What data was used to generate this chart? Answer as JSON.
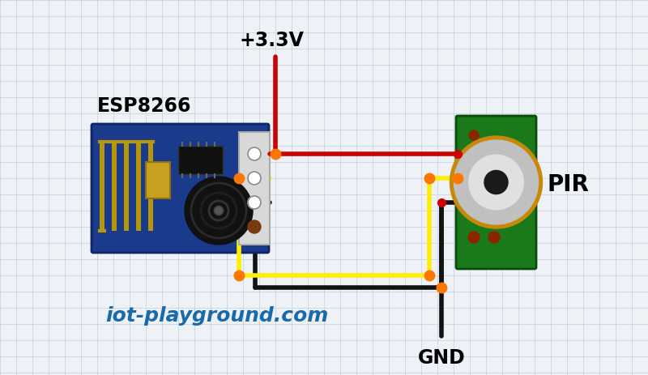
{
  "bg_color": "#eef2f7",
  "grid_color": "#c5d0dc",
  "label_esp": "ESP8266",
  "label_pir": "PIR",
  "label_vcc": "+3.3V",
  "label_gnd": "GND",
  "label_credit": "iot-playground.com",
  "wire_red": "#cc0000",
  "wire_yellow": "#ffee00",
  "wire_black": "#111111",
  "junction": "#ff7700",
  "pin_red": "#cc0000",
  "esp_blue": "#1a3a8c",
  "esp_blue2": "#0d2566",
  "conn_gray": "#cccccc",
  "ant_gold": "#b8960c",
  "chip_dark": "#111111",
  "pir_green": "#1a7a1a",
  "pir_green2": "#0a4a0a",
  "dome_outer": "#c8890a",
  "dome_mid": "#c0c0c0",
  "dome_light": "#e0e0e0",
  "dome_dark": "#1a1a1a",
  "lw_wire": 4.0,
  "junc_ms": 9
}
